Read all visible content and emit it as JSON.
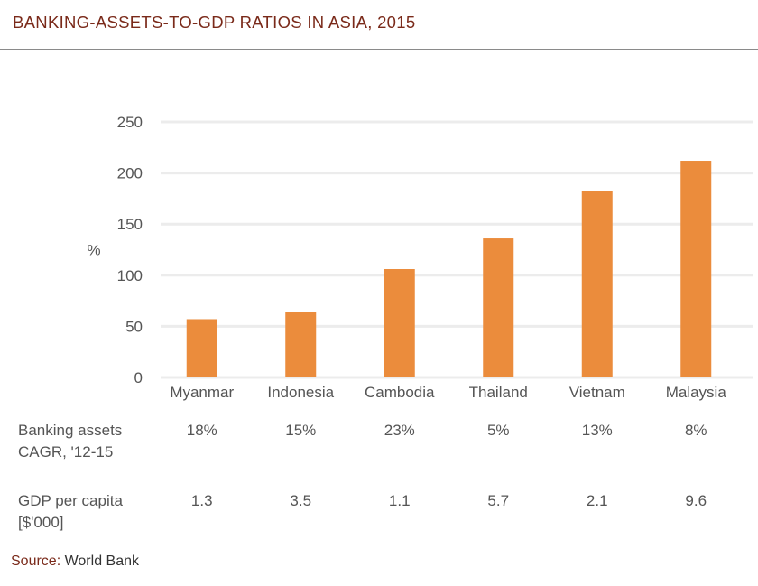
{
  "title": "BANKING-ASSETS-TO-GDP RATIOS IN ASIA, 2015",
  "source": {
    "label": "Source:",
    "value": "World Bank"
  },
  "colors": {
    "bar": "#EB8C3C",
    "grid": "#ECECEC",
    "title": "#7A2A1A",
    "text": "#555555"
  },
  "chart_data": {
    "type": "bar",
    "categories": [
      "Myanmar",
      "Indonesia",
      "Cambodia",
      "Thailand",
      "Vietnam",
      "Malaysia"
    ],
    "values": [
      57,
      64,
      106,
      136,
      182,
      212
    ],
    "ylabel": "%",
    "ylim": [
      0,
      250
    ],
    "yticks": [
      0,
      50,
      100,
      150,
      200,
      250
    ],
    "grid": true
  },
  "table": {
    "rows": [
      {
        "label": "Banking assets\nCAGR, '12-15",
        "values": [
          "18%",
          "15%",
          "23%",
          "5%",
          "13%",
          "8%"
        ]
      },
      {
        "label": "GDP per capita\n[$'000]",
        "values": [
          "1.3",
          "3.5",
          "1.1",
          "5.7",
          "2.1",
          "9.6"
        ]
      }
    ]
  }
}
